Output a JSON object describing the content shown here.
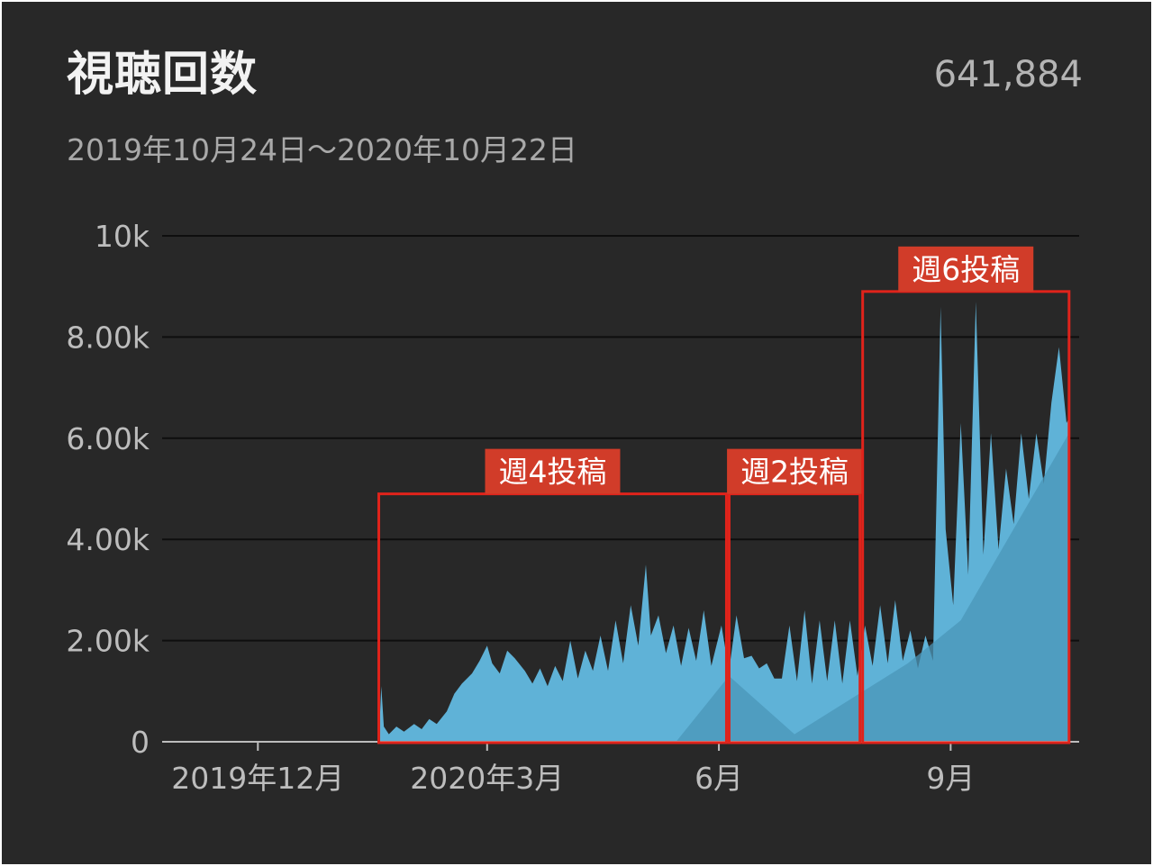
{
  "header": {
    "title": "視聴回数",
    "total": "641,884",
    "date_range": "2019年10月24日～2020年10月22日"
  },
  "colors": {
    "background": "#282828",
    "area": "#5fb2d7",
    "area_trend": "#4a95b8",
    "grid": "#0e0e0e",
    "annotation": "#e0231b",
    "annotation_label_bg": "#d13c29"
  },
  "chart_data": {
    "type": "area",
    "title": "",
    "xlabel": "",
    "ylabel": "",
    "ylim": [
      0,
      10000
    ],
    "yticks": [
      {
        "value": 0,
        "label": "0"
      },
      {
        "value": 2000,
        "label": "2.00k"
      },
      {
        "value": 4000,
        "label": "4.00k"
      },
      {
        "value": 6000,
        "label": "6.00k"
      },
      {
        "value": 8000,
        "label": "8.00k"
      },
      {
        "value": 10000,
        "label": "10k"
      }
    ],
    "xlim": [
      "2019-10-24",
      "2020-10-22"
    ],
    "xticks": [
      {
        "date": "2019-12-01",
        "label": "2019年12月"
      },
      {
        "date": "2020-03-01",
        "label": "2020年3月"
      },
      {
        "date": "2020-06-01",
        "label": "6月"
      },
      {
        "date": "2020-09-01",
        "label": "9月"
      }
    ],
    "grid": true,
    "series": [
      {
        "values": [
          [
            "2020-01-18",
            0
          ],
          [
            "2020-01-19",
            1100
          ],
          [
            "2020-01-20",
            300
          ],
          [
            "2020-01-22",
            150
          ],
          [
            "2020-01-25",
            300
          ],
          [
            "2020-01-28",
            200
          ],
          [
            "2020-02-01",
            350
          ],
          [
            "2020-02-04",
            250
          ],
          [
            "2020-02-07",
            450
          ],
          [
            "2020-02-10",
            350
          ],
          [
            "2020-02-14",
            600
          ],
          [
            "2020-02-17",
            950
          ],
          [
            "2020-02-20",
            1150
          ],
          [
            "2020-02-24",
            1350
          ],
          [
            "2020-02-27",
            1600
          ],
          [
            "2020-03-01",
            1900
          ],
          [
            "2020-03-03",
            1550
          ],
          [
            "2020-03-06",
            1350
          ],
          [
            "2020-03-09",
            1800
          ],
          [
            "2020-03-12",
            1650
          ],
          [
            "2020-03-16",
            1400
          ],
          [
            "2020-03-19",
            1150
          ],
          [
            "2020-03-22",
            1450
          ],
          [
            "2020-03-25",
            1100
          ],
          [
            "2020-03-28",
            1500
          ],
          [
            "2020-03-31",
            1200
          ],
          [
            "2020-04-03",
            2000
          ],
          [
            "2020-04-06",
            1250
          ],
          [
            "2020-04-09",
            1800
          ],
          [
            "2020-04-12",
            1400
          ],
          [
            "2020-04-15",
            2100
          ],
          [
            "2020-04-18",
            1400
          ],
          [
            "2020-04-21",
            2400
          ],
          [
            "2020-04-24",
            1550
          ],
          [
            "2020-04-27",
            2700
          ],
          [
            "2020-04-30",
            1900
          ],
          [
            "2020-05-03",
            3500
          ],
          [
            "2020-05-05",
            2100
          ],
          [
            "2020-05-08",
            2500
          ],
          [
            "2020-05-11",
            1750
          ],
          [
            "2020-05-14",
            2300
          ],
          [
            "2020-05-17",
            1500
          ],
          [
            "2020-05-20",
            2250
          ],
          [
            "2020-05-23",
            1600
          ],
          [
            "2020-05-26",
            2600
          ],
          [
            "2020-05-29",
            1500
          ],
          [
            "2020-06-02",
            2300
          ],
          [
            "2020-06-05",
            1400
          ],
          [
            "2020-06-08",
            2500
          ],
          [
            "2020-06-11",
            1650
          ],
          [
            "2020-06-14",
            1700
          ],
          [
            "2020-06-17",
            1450
          ],
          [
            "2020-06-20",
            1550
          ],
          [
            "2020-06-23",
            1250
          ],
          [
            "2020-06-26",
            1250
          ],
          [
            "2020-06-29",
            2300
          ],
          [
            "2020-07-02",
            1200
          ],
          [
            "2020-07-05",
            2600
          ],
          [
            "2020-07-08",
            1150
          ],
          [
            "2020-07-11",
            2400
          ],
          [
            "2020-07-14",
            1200
          ],
          [
            "2020-07-17",
            2400
          ],
          [
            "2020-07-20",
            1150
          ],
          [
            "2020-07-23",
            2400
          ],
          [
            "2020-07-26",
            1300
          ],
          [
            "2020-07-29",
            2300
          ],
          [
            "2020-08-01",
            1500
          ],
          [
            "2020-08-04",
            2700
          ],
          [
            "2020-08-07",
            1550
          ],
          [
            "2020-08-10",
            2800
          ],
          [
            "2020-08-13",
            1600
          ],
          [
            "2020-08-16",
            2200
          ],
          [
            "2020-08-19",
            1450
          ],
          [
            "2020-08-22",
            2100
          ],
          [
            "2020-08-25",
            1600
          ],
          [
            "2020-08-28",
            8600
          ],
          [
            "2020-08-30",
            4200
          ],
          [
            "2020-09-02",
            2700
          ],
          [
            "2020-09-05",
            6300
          ],
          [
            "2020-09-08",
            3300
          ],
          [
            "2020-09-11",
            8700
          ],
          [
            "2020-09-14",
            3700
          ],
          [
            "2020-09-17",
            6100
          ],
          [
            "2020-09-20",
            3800
          ],
          [
            "2020-09-23",
            5400
          ],
          [
            "2020-09-26",
            4300
          ],
          [
            "2020-09-29",
            6100
          ],
          [
            "2020-10-02",
            4800
          ],
          [
            "2020-10-05",
            6100
          ],
          [
            "2020-10-08",
            5100
          ],
          [
            "2020-10-11",
            6700
          ],
          [
            "2020-10-14",
            7800
          ],
          [
            "2020-10-17",
            6300
          ],
          [
            "2020-10-18",
            6400
          ],
          [
            "2020-10-18",
            0
          ]
        ]
      }
    ],
    "trend_area": [
      [
        "2020-05-15",
        0
      ],
      [
        "2020-06-05",
        1300
      ],
      [
        "2020-07-01",
        150
      ],
      [
        "2020-08-15",
        1550
      ],
      [
        "2020-09-05",
        2400
      ],
      [
        "2020-10-18",
        6100
      ],
      [
        "2020-10-18",
        0
      ]
    ],
    "annotations": [
      {
        "label": "週4投稿",
        "x_start": "2020-01-18",
        "x_end": "2020-06-04",
        "y_top": 4900
      },
      {
        "label": "週2投稿",
        "x_start": "2020-06-04",
        "x_end": "2020-07-27",
        "y_top": 4900
      },
      {
        "label": "週6投稿",
        "x_start": "2020-07-27",
        "x_end": "2020-10-18",
        "y_top": 8900
      }
    ]
  }
}
